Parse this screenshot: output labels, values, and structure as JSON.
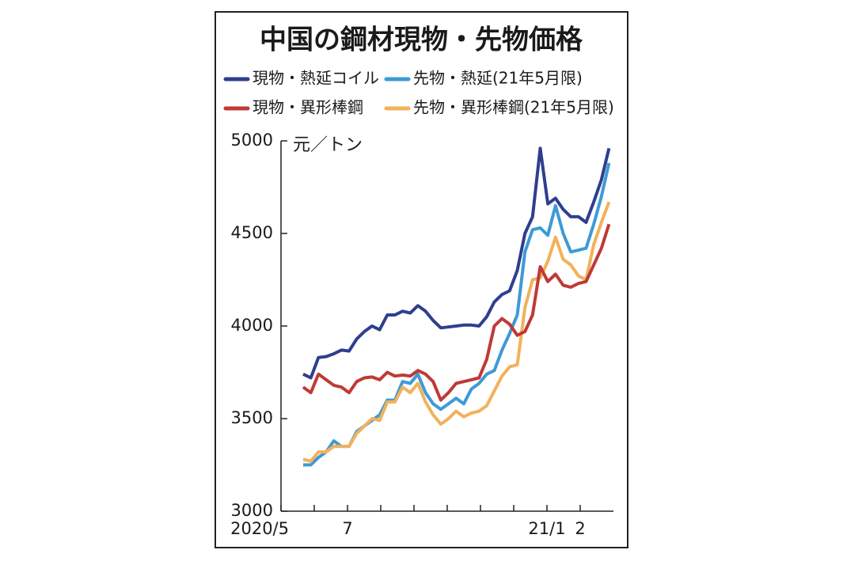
{
  "chart_data": {
    "type": "line",
    "title": "中国の鋼材現物・先物価格",
    "y_unit": "元／トン",
    "x": [
      0.667,
      0.897,
      1.127,
      1.357,
      1.587,
      1.817,
      2.047,
      2.277,
      2.507,
      2.737,
      2.967,
      3.197,
      3.427,
      3.657,
      3.887,
      4.117,
      4.347,
      4.577,
      4.807,
      5.037,
      5.267,
      5.497,
      5.727,
      5.957,
      6.187,
      6.417,
      6.647,
      6.877,
      7.107,
      7.337,
      7.567,
      7.797,
      8.027,
      8.257,
      8.487,
      8.717,
      8.947,
      9.177,
      9.407,
      9.637,
      9.867
    ],
    "series": [
      {
        "name": "現物・熱延コイル",
        "color": "#2e3f8f",
        "values": [
          3740,
          3720,
          3830,
          3835,
          3850,
          3870,
          3865,
          3930,
          3970,
          4000,
          3980,
          4060,
          4060,
          4080,
          4070,
          4110,
          4080,
          4030,
          3990,
          3995,
          4000,
          4005,
          4005,
          4000,
          4050,
          4130,
          4170,
          4190,
          4300,
          4500,
          4590,
          4960,
          4660,
          4690,
          4630,
          4590,
          4590,
          4560,
          4670,
          4790,
          4960
        ]
      },
      {
        "name": "先物・熱延(21年5月限)",
        "color": "#3e9ad6",
        "values": [
          3250,
          3250,
          3290,
          3320,
          3380,
          3350,
          3350,
          3430,
          3460,
          3490,
          3520,
          3600,
          3600,
          3700,
          3690,
          3740,
          3640,
          3580,
          3550,
          3580,
          3610,
          3580,
          3660,
          3690,
          3740,
          3760,
          3870,
          3960,
          4060,
          4400,
          4520,
          4530,
          4490,
          4650,
          4500,
          4400,
          4410,
          4420,
          4550,
          4700,
          4880
        ]
      },
      {
        "name": "現物・異形棒鋼",
        "color": "#bf3a35",
        "values": [
          3670,
          3640,
          3740,
          3710,
          3680,
          3670,
          3640,
          3700,
          3720,
          3725,
          3710,
          3750,
          3730,
          3735,
          3730,
          3760,
          3740,
          3700,
          3600,
          3640,
          3690,
          3700,
          3710,
          3720,
          3820,
          4000,
          4040,
          4010,
          3950,
          3970,
          4060,
          4320,
          4240,
          4280,
          4220,
          4210,
          4230,
          4240,
          4330,
          4420,
          4550
        ]
      },
      {
        "name": "先物・異形棒鋼(21年5月限)",
        "color": "#f2b15a",
        "values": [
          3280,
          3270,
          3320,
          3320,
          3350,
          3350,
          3350,
          3420,
          3460,
          3500,
          3490,
          3590,
          3590,
          3670,
          3640,
          3690,
          3590,
          3520,
          3470,
          3500,
          3540,
          3510,
          3530,
          3540,
          3570,
          3650,
          3730,
          3780,
          3790,
          4100,
          4250,
          4260,
          4350,
          4480,
          4360,
          4330,
          4270,
          4250,
          4440,
          4560,
          4670
        ]
      }
    ],
    "xlim": [
      0,
      10
    ],
    "xticks": [
      {
        "value": 0,
        "label": "2020/5"
      },
      {
        "value": 2,
        "label": "7"
      },
      {
        "value": 8,
        "label": "21/1"
      },
      {
        "value": 9,
        "label": "2"
      }
    ],
    "xticks_minor": [
      1,
      3,
      4,
      5,
      6,
      7
    ],
    "ylim": [
      3000,
      5000
    ],
    "yticks": [
      3000,
      3500,
      4000,
      4500,
      5000
    ]
  }
}
